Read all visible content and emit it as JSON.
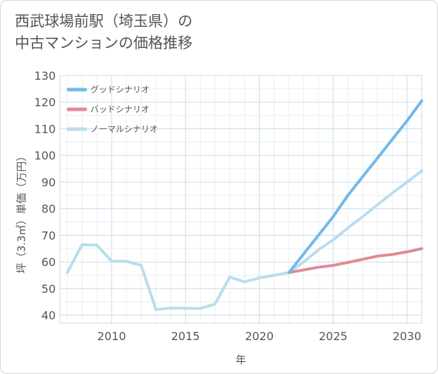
{
  "title": {
    "line1": "西武球場前駅（埼玉県）の",
    "line2": "中古マンションの価格推移"
  },
  "chart_data": {
    "type": "line",
    "xlabel": "年",
    "ylabel": "坪（3.3㎡）単価（万円）",
    "xlim": [
      2006.5,
      2031
    ],
    "ylim": [
      37,
      130
    ],
    "xticks": [
      2010,
      2015,
      2020,
      2025,
      2030
    ],
    "yticks": [
      40,
      50,
      60,
      70,
      80,
      90,
      100,
      110,
      120,
      130
    ],
    "xgrid_step": 1,
    "ygrid_step": 5,
    "legend_position": "top-left",
    "series": [
      {
        "name": "グッドシナリオ",
        "color": "#74b8e8",
        "x": [
          2022,
          2023,
          2024,
          2025,
          2026,
          2027,
          2028,
          2029,
          2030,
          2031
        ],
        "values": [
          56,
          63,
          70,
          77,
          85,
          92,
          99,
          106,
          113,
          120.5
        ]
      },
      {
        "name": "バッドシナリオ",
        "color": "#e08a94",
        "x": [
          2022,
          2023,
          2024,
          2025,
          2026,
          2027,
          2028,
          2029,
          2030,
          2031
        ],
        "values": [
          56,
          57,
          58,
          58.7,
          59.8,
          61,
          62.2,
          62.8,
          63.8,
          65
        ]
      },
      {
        "name": "ノーマルシナリオ",
        "color": "#bcdcec",
        "x": [
          2007,
          2008,
          2009,
          2010,
          2011,
          2012,
          2013,
          2014,
          2015,
          2016,
          2017,
          2018,
          2019,
          2020,
          2021,
          2022,
          2023,
          2024,
          2025,
          2026,
          2027,
          2028,
          2029,
          2030,
          2031
        ],
        "values": [
          56,
          66.5,
          66.3,
          60.3,
          60.2,
          58.7,
          42.1,
          42.7,
          42.6,
          42.5,
          44.2,
          54.3,
          52.5,
          54,
          55,
          56,
          60,
          64.5,
          68.3,
          72.8,
          77,
          81.5,
          85.8,
          90,
          94.2
        ]
      }
    ]
  }
}
